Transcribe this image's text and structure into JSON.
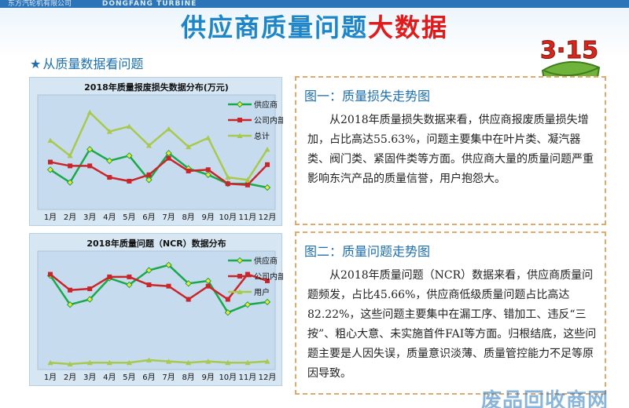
{
  "header": {
    "logo_cn": "东方汽轮机有限公司",
    "logo_en": "DONGFANG TURBINE",
    "title_blue": "供应商质量问题",
    "title_red": "大数据",
    "badge": "3·15"
  },
  "subtitle": {
    "star": "★",
    "text": "从质量数据看问题"
  },
  "colors": {
    "supplier": "#1aa84a",
    "internal": "#c8262a",
    "total": "#a8c84e"
  },
  "chart_data": [
    {
      "type": "line",
      "title": "2018年质量报废损失数据分布(万元)",
      "categories": [
        "1月",
        "2月",
        "3月",
        "4月",
        "5月",
        "6月",
        "7月",
        "8月",
        "9月",
        "10月",
        "11月",
        "12月"
      ],
      "series": [
        {
          "name": "供应商",
          "values": [
            60,
            40,
            92,
            74,
            82,
            44,
            86,
            62,
            52,
            38,
            38,
            32
          ]
        },
        {
          "name": "公司内部",
          "values": [
            72,
            66,
            66,
            48,
            42,
            52,
            78,
            58,
            60,
            38,
            36,
            68
          ]
        },
        {
          "name": "总计",
          "values": [
            106,
            82,
            150,
            120,
            128,
            98,
            124,
            96,
            110,
            48,
            44,
            92
          ]
        }
      ],
      "ylim": [
        0,
        170
      ],
      "legend": "top-right",
      "grid": false
    },
    {
      "type": "line",
      "title": "2018年质量问题（NCR）数据分布",
      "categories": [
        "1月",
        "2月",
        "3月",
        "4月",
        "5月",
        "6月",
        "7月",
        "8月",
        "9月",
        "10月",
        "11月",
        "12月"
      ],
      "series": [
        {
          "name": "供应商",
          "values": [
            140,
            96,
            104,
            136,
            126,
            148,
            156,
            128,
            132,
            84,
            96,
            100
          ]
        },
        {
          "name": "公司内部",
          "values": [
            142,
            118,
            120,
            138,
            138,
            126,
            124,
            104,
            124,
            104,
            142,
            132
          ]
        },
        {
          "name": "用户",
          "values": [
            8,
            6,
            8,
            8,
            8,
            12,
            10,
            8,
            10,
            8,
            8,
            10
          ]
        }
      ],
      "ylim": [
        0,
        170
      ],
      "legend": "top-right",
      "grid": false
    }
  ],
  "cards": [
    {
      "title": "图一：质量损失走势图",
      "body": "从2018年质量损失数据来看，供应商报废质量损失增加，占比高达55.63%，问题主要集中在叶片类、凝汽器类、阀门类、紧固件类等方面。供应商大量的质量问题严重影响东汽产品的质量信誉，用户抱怨大。"
    },
    {
      "title": "图二：质量问题走势图",
      "body": "从2018年质量问题（NCR）数据来看，供应商质量问题频发，占比45.66%，供应商低级质量问题占比高达82.22%，这些问题主要集中在漏工序、错加工、违反“三按”、粗心大意、未实施首件FAI等方面。归根结底，这些问题主要是人因失误，质量意识淡薄、质量管控能力不足等原因导致。"
    }
  ],
  "watermark": "废品回收商网"
}
